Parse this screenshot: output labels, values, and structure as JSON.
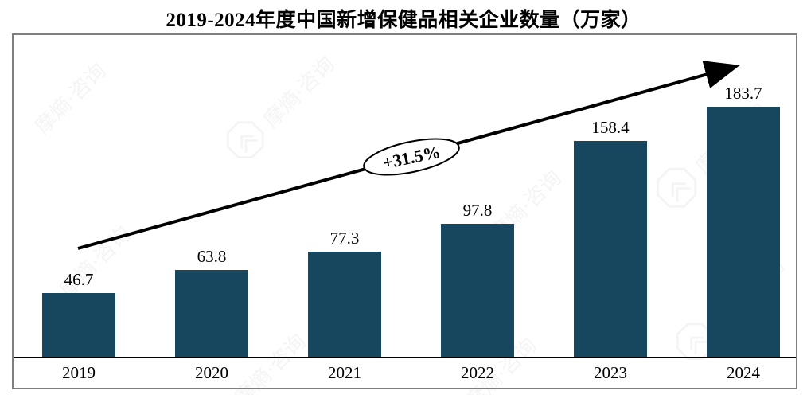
{
  "chart": {
    "title": "2019-2024年度中国新增保健品相关企业数量（万家）",
    "annotation_label": "+31.5%",
    "watermark_text": "摩熵·咨询"
  },
  "chart_data": {
    "type": "bar",
    "categories": [
      "2019",
      "2020",
      "2021",
      "2022",
      "2023",
      "2024"
    ],
    "values": [
      46.7,
      63.8,
      77.3,
      97.8,
      158.4,
      183.7
    ],
    "title": "2019-2024年度中国新增保健品相关企业数量（万家）",
    "xlabel": "",
    "ylabel": "",
    "ylim": [
      0,
      200
    ],
    "grid": false,
    "legend": false,
    "value_labels": true,
    "bar_color": "#17465f",
    "axis_color": "#000000",
    "border_color": "#7f7f7f",
    "annotation": {
      "text": "+31.5%",
      "shape": "ellipse",
      "fill": "#ffffff",
      "stroke": "#000000"
    },
    "trend_arrow": {
      "present": true,
      "color": "#000000",
      "direction": "up-right"
    }
  }
}
